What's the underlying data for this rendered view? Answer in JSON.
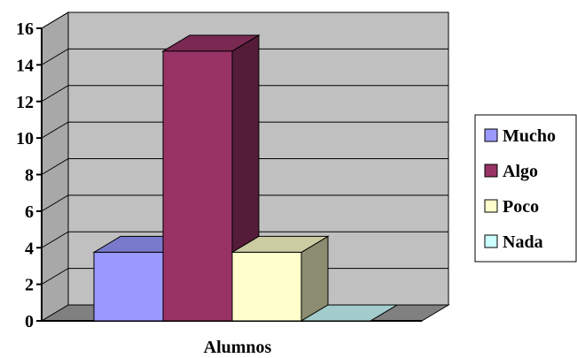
{
  "chart_data": {
    "type": "bar",
    "categories": [
      "Alumnos"
    ],
    "xlabel": "Alumnos",
    "ylabel": "",
    "ylim": [
      0,
      16
    ],
    "yticks": [
      "0",
      "2",
      "4",
      "6",
      "8",
      "10",
      "12",
      "14",
      "16"
    ],
    "grid": true,
    "legend_position": "right",
    "series": [
      {
        "name": "Mucho",
        "values": [
          3.75
        ],
        "color": "#9999ff"
      },
      {
        "name": "Algo",
        "values": [
          14.75
        ],
        "color": "#993366"
      },
      {
        "name": "Poco",
        "values": [
          3.75
        ],
        "color": "#ffffcc"
      },
      {
        "name": "Nada",
        "values": [
          0
        ],
        "color": "#ccffff"
      }
    ],
    "colors": {
      "wall": "#c0c0c0",
      "floor": "#808080",
      "gridline": "#000000"
    }
  }
}
